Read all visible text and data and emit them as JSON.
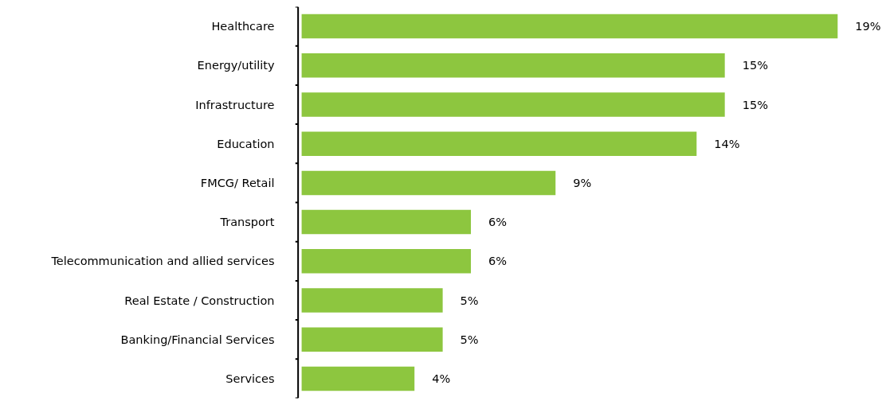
{
  "chart_data": {
    "type": "bar",
    "orientation": "horizontal",
    "categories": [
      "Healthcare",
      "Energy/utility",
      "Infrastructure",
      "Education",
      "FMCG/ Retail",
      "Transport",
      "Telecommunication and allied services",
      "Real Estate / Construction",
      "Banking/Financial Services",
      "Services"
    ],
    "values": [
      19,
      15,
      15,
      14,
      9,
      6,
      6,
      5,
      5,
      4
    ],
    "value_labels": [
      "19%",
      "15%",
      "15%",
      "14%",
      "9%",
      "6%",
      "6%",
      "5%",
      "5%",
      "4%"
    ],
    "color": "#8dc63f",
    "grid": false
  }
}
